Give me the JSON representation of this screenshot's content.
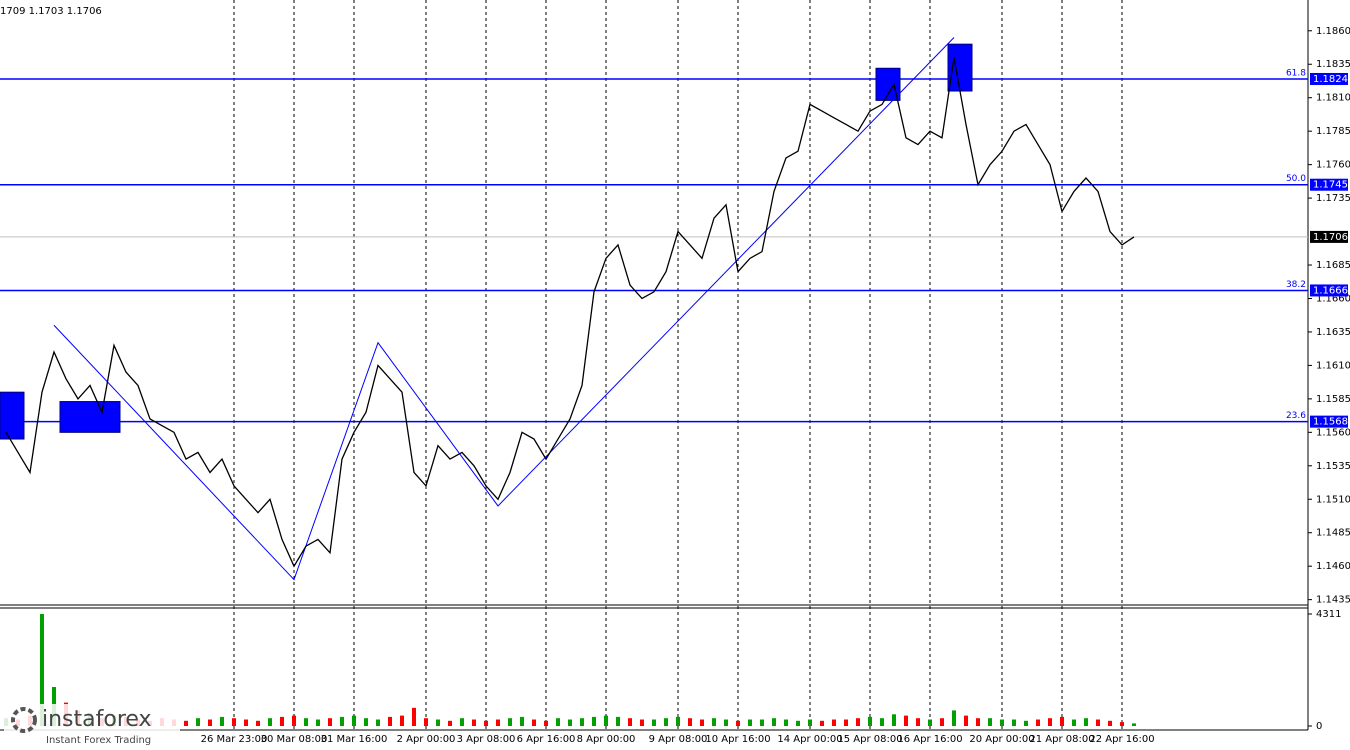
{
  "chart_data": {
    "type": "line",
    "header": "1709 1.1703 1.1706",
    "color": "#000000",
    "xlim": [
      0,
      109
    ],
    "ylim": [
      1.1431,
      1.1883
    ],
    "yticks": [
      {
        "value": 1.186,
        "label": "1.1860"
      },
      {
        "value": 1.1835,
        "label": "1.1835"
      },
      {
        "value": 1.181,
        "label": "1.1810"
      },
      {
        "value": 1.1785,
        "label": "1.1785"
      },
      {
        "value": 1.176,
        "label": "1.1760"
      },
      {
        "value": 1.1735,
        "label": "1.1735"
      },
      {
        "value": 1.1685,
        "label": "1.1685"
      },
      {
        "value": 1.166,
        "label": "1.1660"
      },
      {
        "value": 1.1635,
        "label": "1.1635"
      },
      {
        "value": 1.161,
        "label": "1.1610"
      },
      {
        "value": 1.1585,
        "label": "1.1585"
      },
      {
        "value": 1.156,
        "label": "1.1560"
      },
      {
        "value": 1.1535,
        "label": "1.1535"
      },
      {
        "value": 1.151,
        "label": "1.1510"
      },
      {
        "value": 1.1485,
        "label": "1.1485"
      },
      {
        "value": 1.146,
        "label": "1.1460"
      },
      {
        "value": 1.1435,
        "label": "1.1435"
      }
    ],
    "xticks": [
      {
        "value": 19,
        "label": "26 Mar 23:00"
      },
      {
        "value": 24,
        "label": "30 Mar 08:00"
      },
      {
        "value": 29,
        "label": "31 Mar 16:00"
      },
      {
        "value": 35,
        "label": "2 Apr 00:00"
      },
      {
        "value": 40,
        "label": "3 Apr 08:00"
      },
      {
        "value": 45,
        "label": "6 Apr 16:00"
      },
      {
        "value": 50,
        "label": "8 Apr 00:00"
      },
      {
        "value": 56,
        "label": "9 Apr 08:00"
      },
      {
        "value": 61,
        "label": "10 Apr 16:00"
      },
      {
        "value": 67,
        "label": "14 Apr 00:00"
      },
      {
        "value": 72,
        "label": "15 Apr 08:00"
      },
      {
        "value": 77,
        "label": "16 Apr 16:00"
      },
      {
        "value": 83,
        "label": "20 Apr 00:00"
      },
      {
        "value": 88,
        "label": "21 Apr 08:00"
      },
      {
        "value": 93,
        "label": "22 Apr 16:00"
      }
    ],
    "grid": true,
    "close": [
      1.156,
      1.1545,
      1.153,
      1.159,
      1.162,
      1.16,
      1.1585,
      1.1595,
      1.1575,
      1.1625,
      1.1605,
      1.1595,
      1.157,
      1.1565,
      1.156,
      1.154,
      1.1545,
      1.153,
      1.154,
      1.152,
      1.151,
      1.15,
      1.151,
      1.148,
      1.146,
      1.1475,
      1.148,
      1.147,
      1.154,
      1.156,
      1.1575,
      1.161,
      1.16,
      1.159,
      1.153,
      1.152,
      1.155,
      1.154,
      1.1545,
      1.1535,
      1.152,
      1.151,
      1.153,
      1.156,
      1.1555,
      1.154,
      1.1555,
      1.157,
      1.1595,
      1.1665,
      1.169,
      1.17,
      1.167,
      1.166,
      1.1665,
      1.168,
      1.171,
      1.17,
      1.169,
      1.172,
      1.173,
      1.168,
      1.169,
      1.1695,
      1.174,
      1.1765,
      1.177,
      1.1805,
      1.18,
      1.1795,
      1.179,
      1.1785,
      1.18,
      1.1805,
      1.182,
      1.178,
      1.1775,
      1.1785,
      1.178,
      1.184,
      1.179,
      1.1745,
      1.176,
      1.177,
      1.1785,
      1.179,
      1.1775,
      1.176,
      1.1725,
      1.174,
      1.175,
      1.174,
      1.171,
      1.17,
      1.1706
    ],
    "volume": [
      300,
      250,
      400,
      4311,
      1500,
      900,
      600,
      500,
      300,
      400,
      350,
      250,
      200,
      300,
      250,
      200,
      300,
      250,
      350,
      300,
      250,
      200,
      300,
      350,
      400,
      300,
      250,
      300,
      350,
      400,
      300,
      250,
      350,
      400,
      700,
      300,
      250,
      200,
      300,
      250,
      200,
      250,
      300,
      350,
      250,
      200,
      300,
      250,
      300,
      350,
      400,
      350,
      300,
      250,
      250,
      300,
      350,
      300,
      250,
      300,
      250,
      200,
      250,
      250,
      300,
      250,
      200,
      250,
      200,
      250,
      250,
      300,
      350,
      300,
      450,
      400,
      300,
      250,
      300,
      600,
      400,
      300,
      300,
      250,
      250,
      200,
      250,
      300,
      350,
      250,
      300,
      250,
      200,
      150,
      100
    ],
    "volume_ylim": [
      0,
      4311
    ],
    "volume_yticks": [
      4311,
      0
    ],
    "up_color": "#00a000",
    "down_color": "#ff0000",
    "levels": [
      {
        "fib": "61.8",
        "price": 1.1824,
        "price_label": "1.1824"
      },
      {
        "fib": "50.0",
        "price": 1.1745,
        "price_label": "1.1745"
      },
      {
        "fib": "38.2",
        "price": 1.1666,
        "price_label": "1.1666"
      },
      {
        "fib": "23.6",
        "price": 1.1568,
        "price_label": "1.1568"
      }
    ],
    "level_color": "#0000ff",
    "current_price": 1.1706,
    "current_price_label": "1.1706",
    "wave": {
      "x": [
        4,
        24,
        31,
        41,
        79
      ],
      "y": [
        1.164,
        1.145,
        1.1627,
        1.1505,
        1.1855
      ]
    },
    "zones": [
      {
        "from": 0,
        "to": 1,
        "high": 1.159,
        "low": 1.1555
      },
      {
        "from": 5,
        "to": 9,
        "high": 1.1583,
        "low": 1.156
      },
      {
        "from": 73,
        "to": 74,
        "high": 1.1832,
        "low": 1.1808
      },
      {
        "from": 79,
        "to": 80,
        "high": 1.185,
        "low": 1.1815
      }
    ],
    "logo": {
      "name": "instaforex",
      "tagline": "Instant Forex Trading"
    }
  }
}
